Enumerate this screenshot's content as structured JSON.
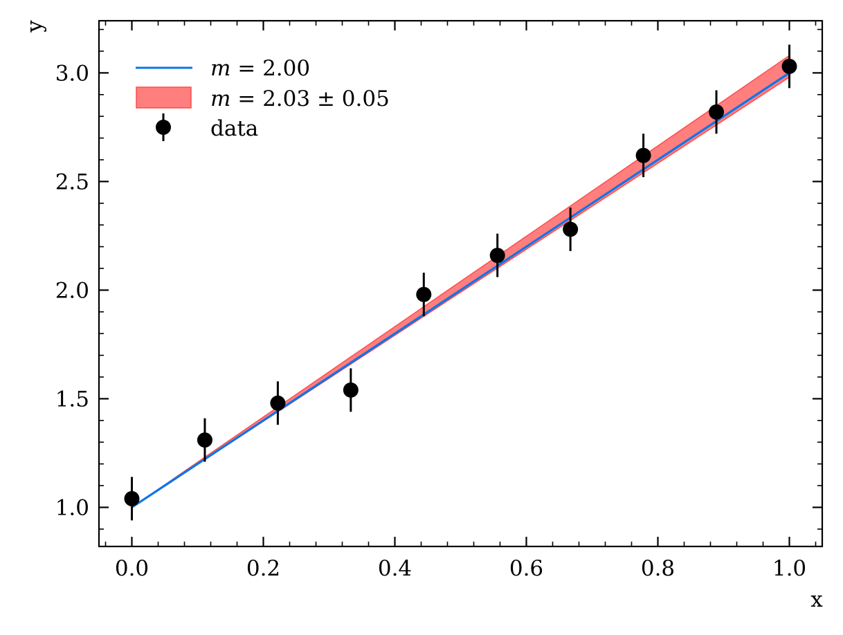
{
  "chart_data": {
    "type": "line",
    "xlabel": "x",
    "ylabel": "y",
    "xlim": [
      -0.05,
      1.05
    ],
    "ylim": [
      0.82,
      3.24
    ],
    "xticks": [
      "0.0",
      "0.2",
      "0.4",
      "0.6",
      "0.8",
      "1.0"
    ],
    "xtick_values": [
      0.0,
      0.2,
      0.4,
      0.6,
      0.8,
      1.0
    ],
    "yticks": [
      "1.0",
      "1.5",
      "2.0",
      "2.5",
      "3.0"
    ],
    "ytick_values": [
      1.0,
      1.5,
      2.0,
      2.5,
      3.0
    ],
    "grid": false,
    "legend_position": "top-left",
    "series": [
      {
        "name": "m = 2.00",
        "kind": "line",
        "color": "#0c75ea",
        "x": [
          0.0,
          1.0
        ],
        "y": [
          1.0,
          3.0
        ]
      },
      {
        "name": "m = 2.03 ± 0.05",
        "kind": "band",
        "color": "#ff7f7f",
        "edge_color": "#ff4c4c",
        "intercept": 1.0,
        "slope_low": 1.98,
        "slope_high": 2.08
      },
      {
        "name": "data",
        "kind": "errorbar",
        "color": "#000000",
        "x": [
          0.0,
          0.111,
          0.222,
          0.333,
          0.444,
          0.556,
          0.667,
          0.778,
          0.889,
          1.0
        ],
        "y": [
          1.04,
          1.31,
          1.48,
          1.54,
          1.98,
          2.16,
          2.28,
          2.62,
          2.82,
          3.03
        ],
        "yerr": [
          0.1,
          0.1,
          0.1,
          0.1,
          0.1,
          0.1,
          0.1,
          0.1,
          0.1,
          0.1
        ]
      }
    ]
  }
}
